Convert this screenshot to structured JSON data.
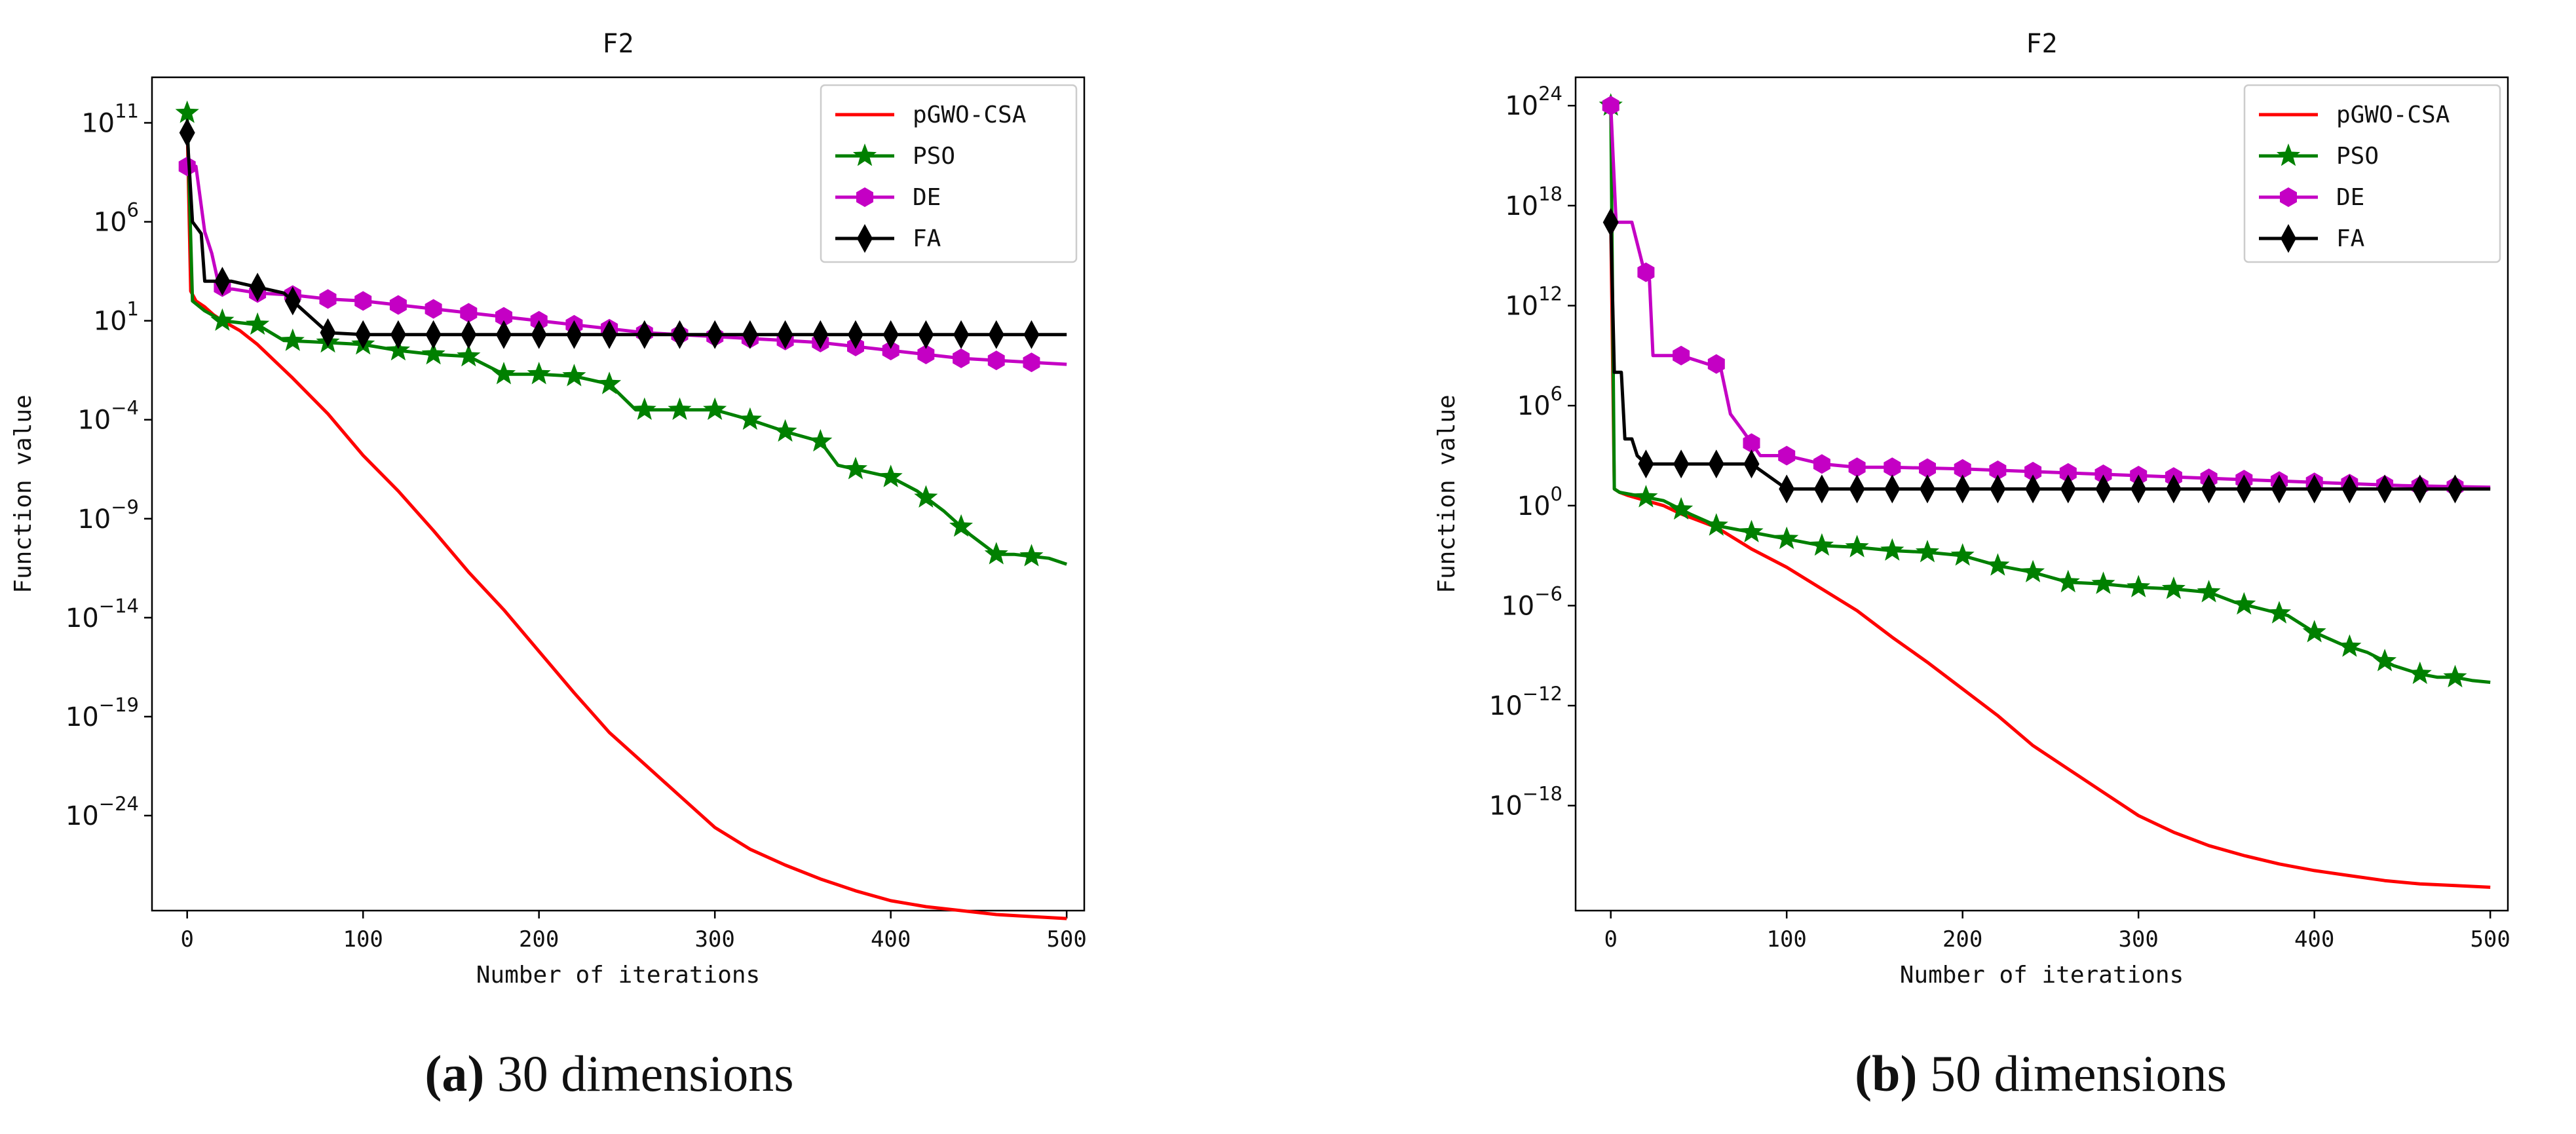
{
  "captions": [
    {
      "letter": "(a)",
      "text": " 30 dimensions"
    },
    {
      "letter": "(b)",
      "text": " 50 dimensions"
    }
  ],
  "chart_data": [
    {
      "type": "line",
      "title": "F2",
      "xlabel": "Number of iterations",
      "ylabel": "Function value",
      "yscale": "log",
      "xlim": [
        -20,
        510
      ],
      "ylim_exp": [
        -28.8,
        13.3
      ],
      "xticks": [
        0,
        100,
        200,
        300,
        400,
        500
      ],
      "yticks_exp": [
        11,
        6,
        1,
        -4,
        -9,
        -14,
        -19,
        -24
      ],
      "legend_position": "top-right",
      "series": [
        {
          "name": "pGWO-CSA",
          "color": "#ff0000",
          "marker": "none",
          "x": [
            0,
            2,
            5,
            10,
            15,
            20,
            30,
            40,
            60,
            80,
            100,
            120,
            140,
            160,
            180,
            200,
            220,
            240,
            260,
            280,
            300,
            320,
            340,
            360,
            380,
            400,
            420,
            440,
            460,
            480,
            500
          ],
          "y_exp": [
            11,
            2.5,
            2.0,
            1.7,
            1.3,
            1.0,
            0.5,
            -0.2,
            -1.9,
            -3.7,
            -5.8,
            -7.6,
            -9.6,
            -11.7,
            -13.6,
            -15.7,
            -17.8,
            -19.8,
            -21.4,
            -23.0,
            -24.6,
            -25.7,
            -26.5,
            -27.2,
            -27.8,
            -28.3,
            -28.6,
            -28.8,
            -29.0,
            -29.1,
            -29.2
          ]
        },
        {
          "name": "PSO",
          "color": "#008000",
          "marker": "star",
          "x": [
            0,
            3,
            10,
            20,
            40,
            55,
            80,
            100,
            120,
            140,
            160,
            180,
            200,
            220,
            240,
            255,
            280,
            300,
            320,
            340,
            360,
            370,
            390,
            400,
            415,
            430,
            445,
            460,
            470,
            480,
            490,
            500
          ],
          "y_exp": [
            11.5,
            2.0,
            1.5,
            1.0,
            0.8,
            0.0,
            -0.1,
            -0.2,
            -0.5,
            -0.7,
            -0.8,
            -1.7,
            -1.7,
            -1.8,
            -2.2,
            -3.5,
            -3.5,
            -3.5,
            -4.0,
            -4.6,
            -5.1,
            -6.3,
            -6.7,
            -6.9,
            -7.6,
            -8.6,
            -9.8,
            -10.8,
            -10.8,
            -10.9,
            -11.0,
            -11.3
          ]
        },
        {
          "name": "DE",
          "color": "#c400c4",
          "marker": "hexagon",
          "x": [
            0,
            5,
            10,
            14,
            18,
            22,
            26,
            40,
            60,
            80,
            100,
            120,
            140,
            160,
            180,
            200,
            220,
            240,
            260,
            280,
            300,
            320,
            340,
            360,
            380,
            400,
            420,
            440,
            460,
            480,
            500
          ],
          "y_exp": [
            8.8,
            8.8,
            5.5,
            4.4,
            2.8,
            2.6,
            2.6,
            2.4,
            2.3,
            2.1,
            2.0,
            1.8,
            1.6,
            1.4,
            1.2,
            1.0,
            0.8,
            0.6,
            0.4,
            0.3,
            0.2,
            0.1,
            0.0,
            -0.1,
            -0.3,
            -0.5,
            -0.7,
            -0.9,
            -1.0,
            -1.1,
            -1.2
          ]
        },
        {
          "name": "FA",
          "color": "#000000",
          "marker": "diamond",
          "x": [
            0,
            3,
            8,
            10,
            25,
            55,
            65,
            75,
            80,
            100,
            150,
            200,
            250,
            300,
            350,
            400,
            450,
            500
          ],
          "y_exp": [
            10.5,
            6.0,
            5.4,
            3.0,
            3.0,
            2.4,
            1.6,
            0.8,
            0.4,
            0.3,
            0.3,
            0.3,
            0.3,
            0.3,
            0.3,
            0.3,
            0.3,
            0.3
          ]
        }
      ]
    },
    {
      "type": "line",
      "title": "F2",
      "xlabel": "Number of iterations",
      "ylabel": "Function value",
      "yscale": "log",
      "xlim": [
        -20,
        510
      ],
      "ylim_exp": [
        -24.3,
        25.7
      ],
      "xticks": [
        0,
        100,
        200,
        300,
        400,
        500
      ],
      "yticks_exp": [
        24,
        18,
        12,
        6,
        0,
        -6,
        -12,
        -18
      ],
      "legend_position": "top-right",
      "series": [
        {
          "name": "pGWO-CSA",
          "color": "#ff0000",
          "marker": "none",
          "x": [
            0,
            2,
            5,
            10,
            20,
            30,
            40,
            60,
            80,
            100,
            120,
            140,
            160,
            180,
            200,
            220,
            240,
            260,
            280,
            300,
            320,
            340,
            360,
            380,
            400,
            420,
            440,
            460,
            480,
            500
          ],
          "y_exp": [
            17.0,
            1.0,
            0.8,
            0.6,
            0.3,
            0.0,
            -0.5,
            -1.3,
            -2.6,
            -3.7,
            -5.0,
            -6.3,
            -7.9,
            -9.4,
            -11.0,
            -12.6,
            -14.4,
            -15.8,
            -17.2,
            -18.6,
            -19.6,
            -20.4,
            -21.0,
            -21.5,
            -21.9,
            -22.2,
            -22.5,
            -22.7,
            -22.8,
            -22.9
          ]
        },
        {
          "name": "PSO",
          "color": "#008000",
          "marker": "star",
          "x": [
            0,
            2,
            5,
            15,
            30,
            45,
            60,
            80,
            100,
            120,
            140,
            160,
            180,
            200,
            220,
            240,
            260,
            280,
            300,
            320,
            340,
            355,
            370,
            385,
            400,
            415,
            430,
            445,
            460,
            470,
            480,
            490,
            500
          ],
          "y_exp": [
            24.0,
            1.0,
            0.8,
            0.6,
            0.3,
            -0.5,
            -1.2,
            -1.6,
            -2.0,
            -2.4,
            -2.5,
            -2.7,
            -2.8,
            -3.0,
            -3.6,
            -4.0,
            -4.6,
            -4.7,
            -4.9,
            -5.0,
            -5.2,
            -5.8,
            -6.2,
            -6.6,
            -7.6,
            -8.3,
            -8.8,
            -9.6,
            -10.1,
            -10.3,
            -10.3,
            -10.5,
            -10.6
          ]
        },
        {
          "name": "DE",
          "color": "#c400c4",
          "marker": "hexagon",
          "x": [
            0,
            3,
            6,
            12,
            18,
            22,
            24,
            26,
            40,
            55,
            62,
            68,
            75,
            85,
            95,
            100,
            120,
            140,
            160,
            200,
            250,
            300,
            350,
            400,
            450,
            500
          ],
          "y_exp": [
            24.0,
            17.0,
            17.0,
            17.0,
            14.5,
            13.5,
            9.0,
            9.0,
            9.0,
            8.5,
            8.5,
            5.5,
            4.5,
            3.0,
            3.0,
            3.0,
            2.5,
            2.3,
            2.3,
            2.2,
            2.0,
            1.8,
            1.6,
            1.4,
            1.2,
            1.1
          ]
        },
        {
          "name": "FA",
          "color": "#000000",
          "marker": "diamond",
          "x": [
            0,
            2,
            6,
            8,
            12,
            15,
            20,
            80,
            100,
            120,
            200,
            300,
            400,
            500
          ],
          "y_exp": [
            17.0,
            8.0,
            8.0,
            4.0,
            4.0,
            3.0,
            2.5,
            2.5,
            1.0,
            1.0,
            1.0,
            1.0,
            1.0,
            1.0
          ]
        }
      ]
    }
  ]
}
